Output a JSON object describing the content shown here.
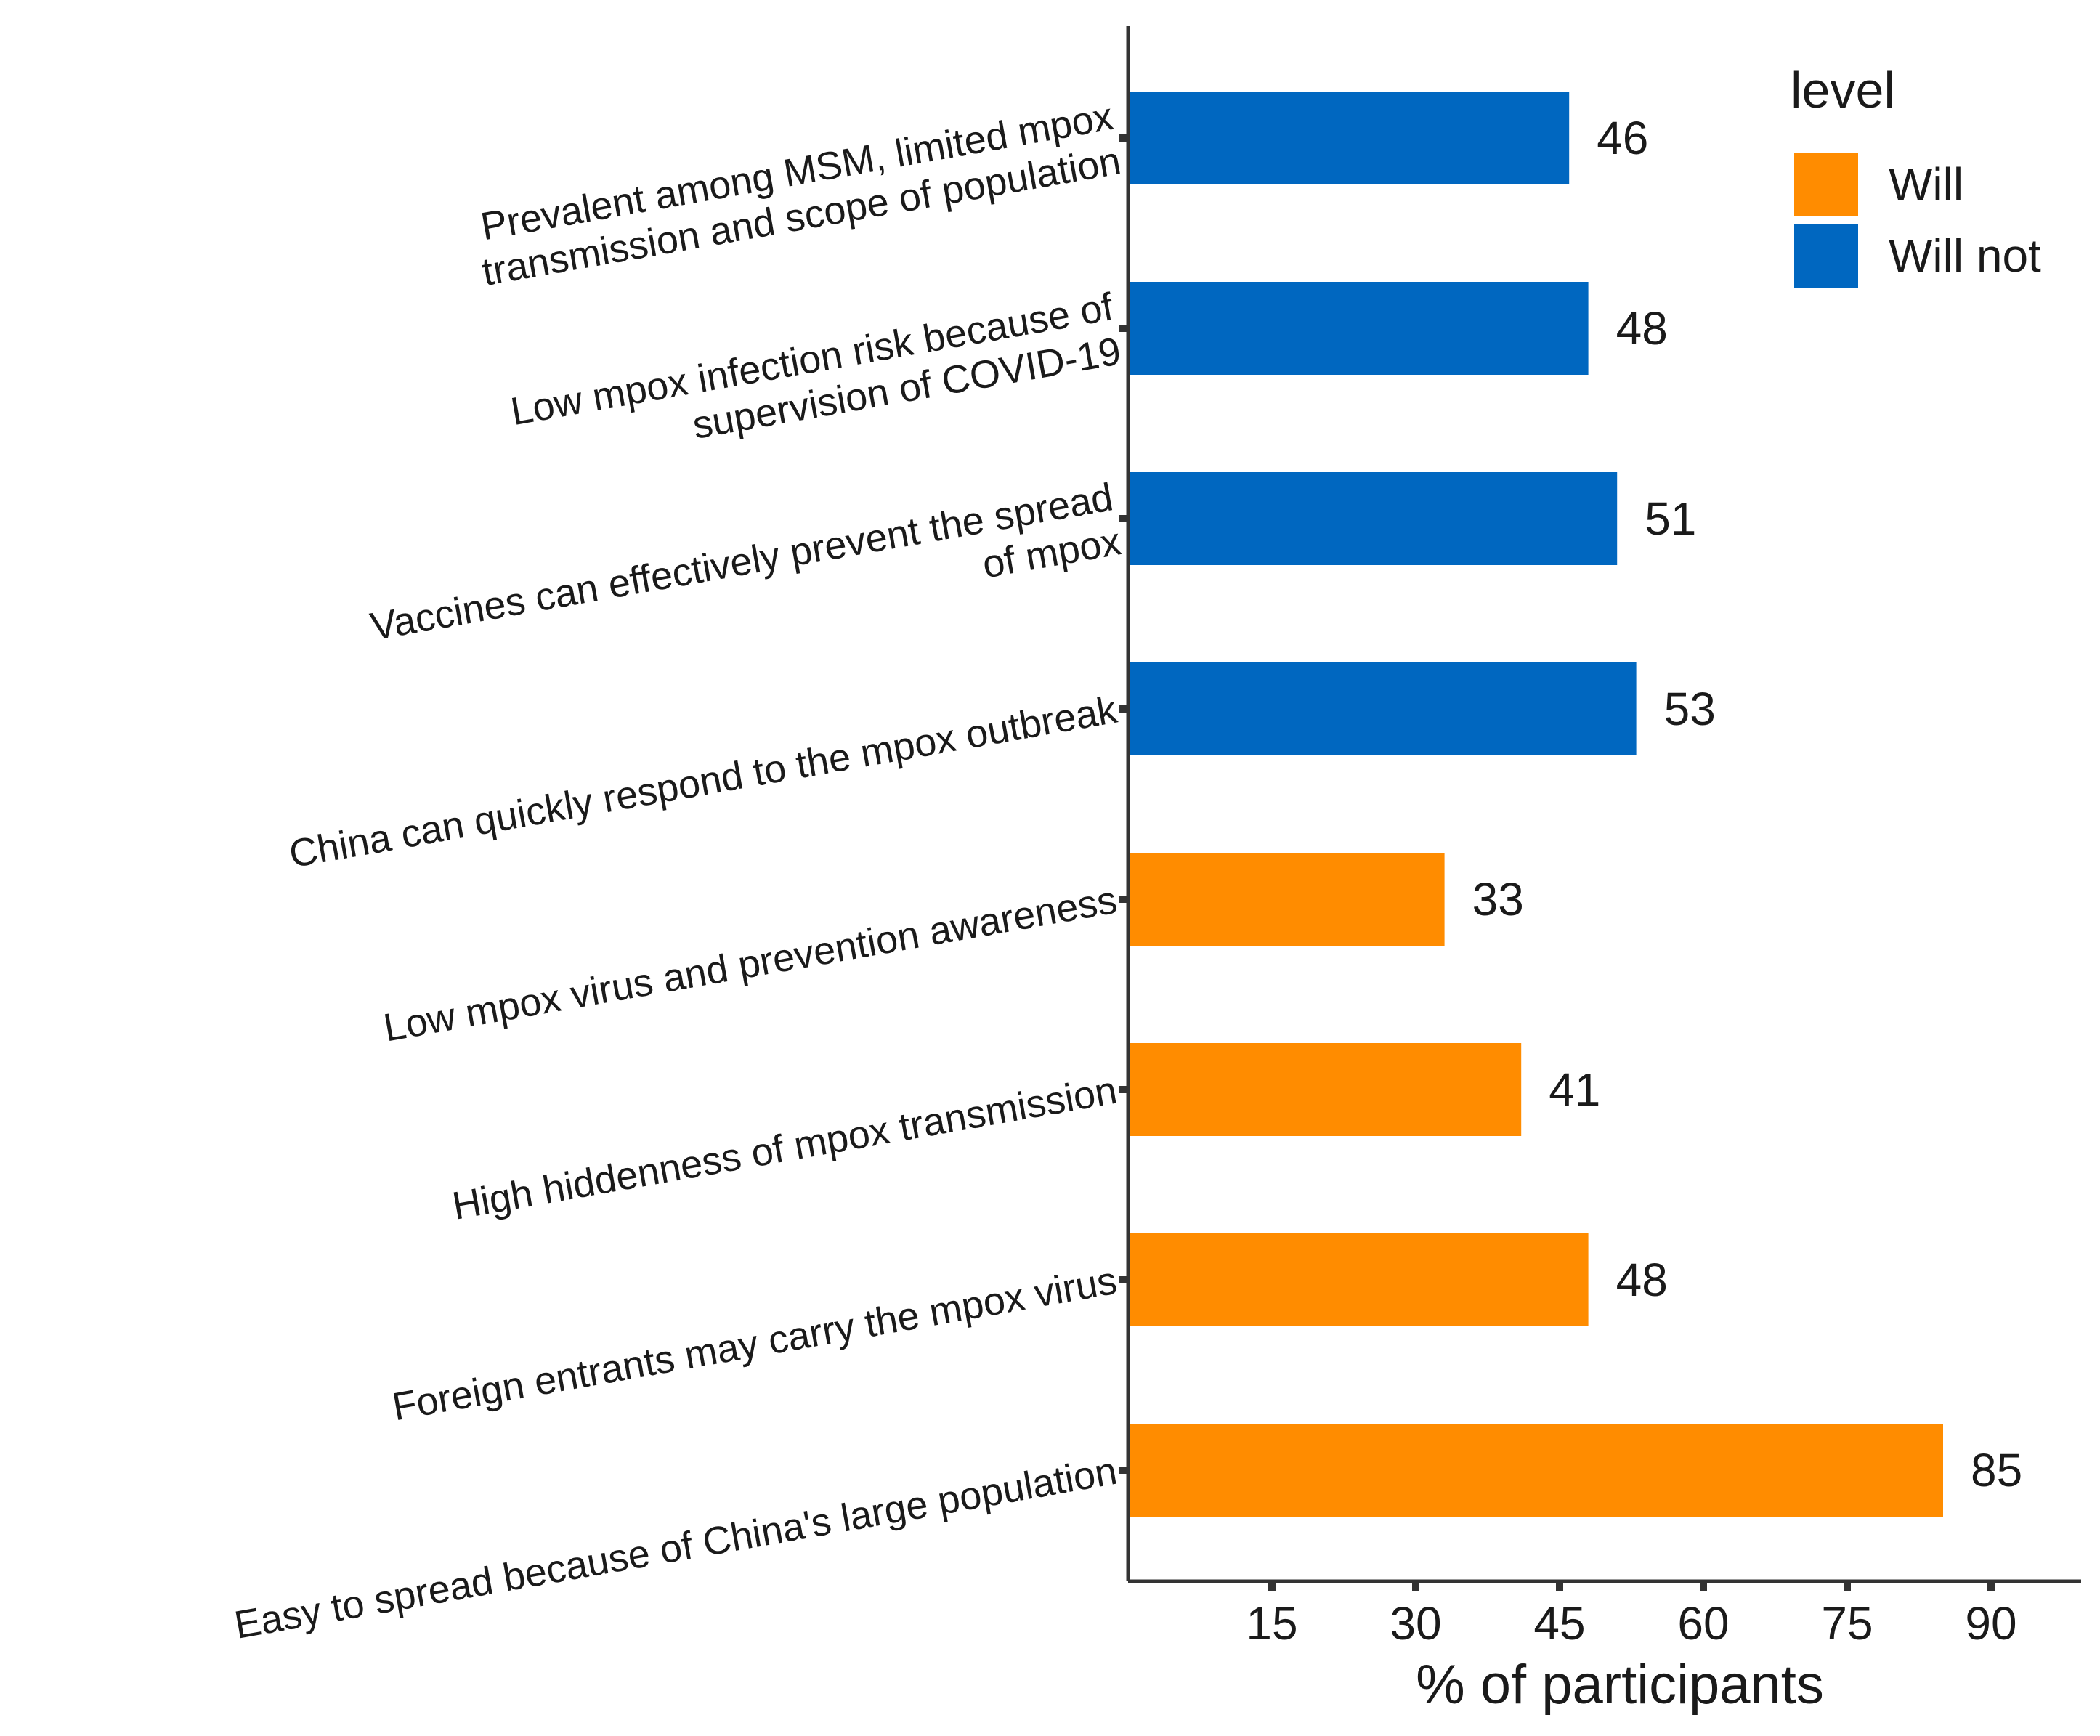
{
  "chart_data": {
    "type": "bar",
    "orientation": "horizontal",
    "categories": [
      {
        "lines": [
          "Prevalent among MSM, limited mpox",
          "transmission and scope of population"
        ],
        "value": 46,
        "level": "Will not"
      },
      {
        "lines": [
          "Low mpox infection risk because of",
          "supervision of COVID-19"
        ],
        "value": 48,
        "level": "Will not"
      },
      {
        "lines": [
          "Vaccines can effectively prevent the spread",
          "of mpox"
        ],
        "value": 51,
        "level": "Will not"
      },
      {
        "lines": [
          "China can quickly respond to the mpox outbreak"
        ],
        "value": 53,
        "level": "Will not"
      },
      {
        "lines": [
          "Low mpox virus and prevention awareness"
        ],
        "value": 33,
        "level": "Will"
      },
      {
        "lines": [
          "High hiddenness of mpox transmission"
        ],
        "value": 41,
        "level": "Will"
      },
      {
        "lines": [
          "Foreign entrants may carry the mpox virus"
        ],
        "value": 48,
        "level": "Will"
      },
      {
        "lines": [
          "Easy to spread because of China's large population"
        ],
        "value": 85,
        "level": "Will"
      }
    ],
    "xlabel": "% of participants",
    "xlim": [
      0,
      100
    ],
    "xticks": [
      15,
      30,
      45,
      60,
      75,
      90
    ],
    "legend": {
      "title": "level",
      "position": "top-right",
      "entries": [
        {
          "label": "Will",
          "color": "#FF8C00"
        },
        {
          "label": "Will not",
          "color": "#0067C0"
        }
      ]
    },
    "grid": false
  }
}
